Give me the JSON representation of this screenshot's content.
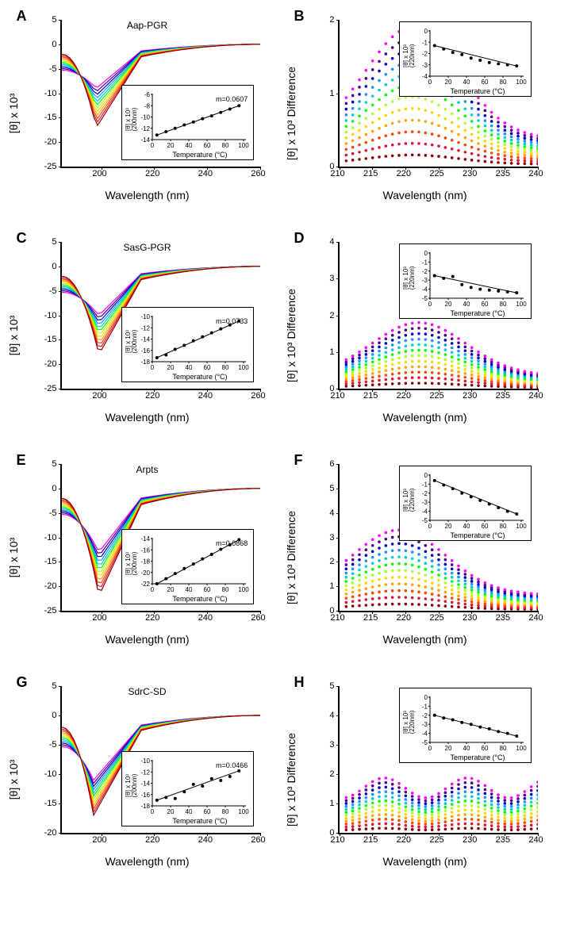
{
  "colors": [
    "#8b0000",
    "#dc143c",
    "#ff4500",
    "#ffa500",
    "#ffd700",
    "#adff2f",
    "#00ff00",
    "#00ced1",
    "#1e90ff",
    "#0000cd",
    "#4b0082",
    "#ff00ff"
  ],
  "panels": [
    {
      "id": "A",
      "title": "Aap-PGR",
      "type": "curves",
      "xlabel": "Wavelength (nm)",
      "ylabel": "[θ] x 10³",
      "xlim": [
        185,
        260
      ],
      "ylim": [
        -25,
        5
      ],
      "xticks": [
        200,
        220,
        240,
        260
      ],
      "yticks": [
        5,
        0,
        -5,
        -10,
        -15,
        -20,
        -25
      ],
      "curves_min": -17,
      "curves_max": -9,
      "min_wl": 198,
      "inset": {
        "pos": "br",
        "m": "m=0.0607",
        "xlabel": "Temperature (°C)",
        "ylabel": "[θ] x 10³\n(200nm)",
        "ylim": [
          -14,
          -6
        ],
        "yticks": [
          -6,
          -8,
          -10,
          -12,
          -14
        ],
        "xticks": [
          0,
          20,
          40,
          60,
          80,
          100
        ],
        "data": [
          [
            5,
            -13.2
          ],
          [
            15,
            -12.6
          ],
          [
            25,
            -12.0
          ],
          [
            35,
            -11.4
          ],
          [
            45,
            -10.9
          ],
          [
            55,
            -10.3
          ],
          [
            65,
            -9.8
          ],
          [
            75,
            -9.2
          ],
          [
            85,
            -8.6
          ],
          [
            95,
            -8.0
          ]
        ]
      }
    },
    {
      "id": "B",
      "title": "",
      "type": "dots",
      "xlabel": "Wavelength (nm)",
      "ylabel": "[θ] x 10³ Difference",
      "xlim": [
        210,
        240
      ],
      "ylim": [
        0,
        2
      ],
      "xticks": [
        210,
        215,
        220,
        225,
        230,
        235,
        240
      ],
      "yticks": [
        0,
        1,
        2
      ],
      "peak_wl": 221,
      "max_peak": 1.9,
      "inset": {
        "pos": "tr",
        "xlabel": "Temperature (°C)",
        "ylabel": "[θ] x 10³\n(220nm)",
        "ylim": [
          -4,
          0
        ],
        "yticks": [
          0,
          -1,
          -2,
          -3,
          -4
        ],
        "xticks": [
          0,
          20,
          40,
          60,
          80,
          100
        ],
        "data": [
          [
            5,
            -1.3
          ],
          [
            15,
            -1.6
          ],
          [
            25,
            -1.9
          ],
          [
            35,
            -2.1
          ],
          [
            45,
            -2.4
          ],
          [
            55,
            -2.6
          ],
          [
            65,
            -2.8
          ],
          [
            75,
            -2.9
          ],
          [
            85,
            -3.0
          ],
          [
            95,
            -3.1
          ]
        ]
      }
    },
    {
      "id": "C",
      "title": "SasG-PGR",
      "type": "curves",
      "xlabel": "Wavelength (nm)",
      "ylabel": "[θ] x 10³",
      "xlim": [
        185,
        260
      ],
      "ylim": [
        -25,
        5
      ],
      "xticks": [
        200,
        220,
        240,
        260
      ],
      "yticks": [
        5,
        0,
        -5,
        -10,
        -15,
        -20,
        -25
      ],
      "curves_min": -18,
      "curves_max": -10,
      "min_wl": 199,
      "inset": {
        "pos": "br",
        "m": "m=0.0733",
        "xlabel": "Temperature (°C)",
        "ylabel": "[θ] x 10³\n(200nm)",
        "ylim": [
          -18,
          -10
        ],
        "yticks": [
          -10,
          -12,
          -14,
          -16,
          -18
        ],
        "xticks": [
          0,
          20,
          40,
          60,
          80,
          100
        ],
        "data": [
          [
            5,
            -17.3
          ],
          [
            15,
            -16.8
          ],
          [
            25,
            -15.8
          ],
          [
            35,
            -15.1
          ],
          [
            45,
            -14.3
          ],
          [
            55,
            -13.6
          ],
          [
            65,
            -12.9
          ],
          [
            75,
            -12.2
          ],
          [
            85,
            -11.5
          ],
          [
            95,
            -10.8
          ]
        ]
      }
    },
    {
      "id": "D",
      "title": "",
      "type": "dots",
      "xlabel": "Wavelength (nm)",
      "ylabel": "[θ] x 10³ Difference",
      "xlim": [
        210,
        240
      ],
      "ylim": [
        0,
        4
      ],
      "xticks": [
        210,
        215,
        220,
        225,
        230,
        235,
        240
      ],
      "yticks": [
        0,
        1,
        2,
        3,
        4
      ],
      "peak_wl": 222,
      "max_peak": 1.8,
      "inset": {
        "pos": "tr",
        "xlabel": "Temperature (°C)",
        "ylabel": "[θ] x 10³\n(220nm)",
        "ylim": [
          -5,
          0
        ],
        "yticks": [
          0,
          -1,
          -2,
          -3,
          -4,
          -5
        ],
        "xticks": [
          0,
          20,
          40,
          60,
          80,
          100
        ],
        "data": [
          [
            5,
            -2.5
          ],
          [
            15,
            -2.8
          ],
          [
            25,
            -2.6
          ],
          [
            35,
            -3.5
          ],
          [
            45,
            -3.8
          ],
          [
            55,
            -4.0
          ],
          [
            65,
            -4.1
          ],
          [
            75,
            -4.2
          ],
          [
            85,
            -4.3
          ],
          [
            95,
            -4.4
          ]
        ]
      }
    },
    {
      "id": "E",
      "title": "Arpts",
      "type": "curves",
      "xlabel": "Wavelength (nm)",
      "ylabel": "[θ] x 10³",
      "xlim": [
        185,
        260
      ],
      "ylim": [
        -25,
        5
      ],
      "xticks": [
        200,
        220,
        240,
        260
      ],
      "yticks": [
        5,
        0,
        -5,
        -10,
        -15,
        -20,
        -25
      ],
      "curves_min": -22,
      "curves_max": -13,
      "min_wl": 199,
      "inset": {
        "pos": "br",
        "m": "m=0.0868",
        "xlabel": "Temperature (°C)",
        "ylabel": "[θ] x 10³\n(200nm)",
        "ylim": [
          -22,
          -14
        ],
        "yticks": [
          -14,
          -16,
          -18,
          -20,
          -22
        ],
        "xticks": [
          0,
          20,
          40,
          60,
          80,
          100
        ],
        "data": [
          [
            5,
            -22.0
          ],
          [
            15,
            -21.1
          ],
          [
            25,
            -20.2
          ],
          [
            35,
            -19.3
          ],
          [
            45,
            -18.5
          ],
          [
            55,
            -17.6
          ],
          [
            65,
            -16.8
          ],
          [
            75,
            -15.9
          ],
          [
            85,
            -15.1
          ],
          [
            95,
            -14.2
          ]
        ]
      }
    },
    {
      "id": "F",
      "title": "",
      "type": "dots",
      "xlabel": "Wavelength (nm)",
      "ylabel": "[θ] x 10³ Difference",
      "xlim": [
        210,
        240
      ],
      "ylim": [
        0,
        6
      ],
      "xticks": [
        210,
        215,
        220,
        225,
        230,
        235,
        240
      ],
      "yticks": [
        0,
        1,
        2,
        3,
        4,
        5,
        6
      ],
      "peak_wl": 219,
      "max_peak": 3.3,
      "inset": {
        "pos": "tr",
        "xlabel": "Temperature (°C)",
        "ylabel": "[θ] x 10³\n(220nm)",
        "ylim": [
          -5,
          0
        ],
        "yticks": [
          0,
          -1,
          -2,
          -3,
          -4,
          -5
        ],
        "xticks": [
          0,
          20,
          40,
          60,
          80,
          100
        ],
        "data": [
          [
            5,
            -0.6
          ],
          [
            15,
            -1.1
          ],
          [
            25,
            -1.5
          ],
          [
            35,
            -2.0
          ],
          [
            45,
            -2.4
          ],
          [
            55,
            -2.8
          ],
          [
            65,
            -3.2
          ],
          [
            75,
            -3.6
          ],
          [
            85,
            -4.0
          ],
          [
            95,
            -4.3
          ]
        ]
      }
    },
    {
      "id": "G",
      "title": "SdrC-SD",
      "type": "curves",
      "xlabel": "Wavelength (nm)",
      "ylabel": "[θ] x 10³",
      "xlim": [
        185,
        260
      ],
      "ylim": [
        -20,
        5
      ],
      "xticks": [
        200,
        220,
        240,
        260
      ],
      "yticks": [
        5,
        0,
        -5,
        -10,
        -15,
        -20
      ],
      "curves_min": -17,
      "curves_max": -11,
      "min_wl": 197,
      "inset": {
        "pos": "br",
        "m": "m=0.0466",
        "xlabel": "Temperature (°C)",
        "ylabel": "[θ] x 10³\n(200nm)",
        "ylim": [
          -18,
          -10
        ],
        "yticks": [
          -10,
          -12,
          -14,
          -16,
          -18
        ],
        "xticks": [
          0,
          20,
          40,
          60,
          80,
          100
        ],
        "data": [
          [
            5,
            -17.0
          ],
          [
            15,
            -16.5
          ],
          [
            25,
            -16.7
          ],
          [
            35,
            -15.5
          ],
          [
            45,
            -14.2
          ],
          [
            55,
            -14.5
          ],
          [
            65,
            -13.2
          ],
          [
            75,
            -13.5
          ],
          [
            85,
            -12.8
          ],
          [
            95,
            -11.8
          ]
        ]
      }
    },
    {
      "id": "H",
      "title": "",
      "type": "dots-flat",
      "xlabel": "Wavelength (nm)",
      "ylabel": "[θ] x 10³ Difference",
      "xlim": [
        210,
        240
      ],
      "ylim": [
        0,
        5
      ],
      "xticks": [
        210,
        215,
        220,
        225,
        230,
        235,
        240
      ],
      "yticks": [
        0,
        1,
        2,
        3,
        4,
        5
      ],
      "max_peak": 1.7,
      "inset": {
        "pos": "tr",
        "xlabel": "Temperature (°C)",
        "ylabel": "[θ] x 10³\n(220nm)",
        "ylim": [
          -5,
          0
        ],
        "yticks": [
          0,
          -1,
          -2,
          -3,
          -4,
          -5
        ],
        "xticks": [
          0,
          20,
          40,
          60,
          80,
          100
        ],
        "data": [
          [
            5,
            -2.0
          ],
          [
            15,
            -2.3
          ],
          [
            25,
            -2.5
          ],
          [
            35,
            -2.8
          ],
          [
            45,
            -3.0
          ],
          [
            55,
            -3.3
          ],
          [
            65,
            -3.5
          ],
          [
            75,
            -3.8
          ],
          [
            85,
            -4.0
          ],
          [
            95,
            -4.3
          ]
        ]
      }
    }
  ]
}
